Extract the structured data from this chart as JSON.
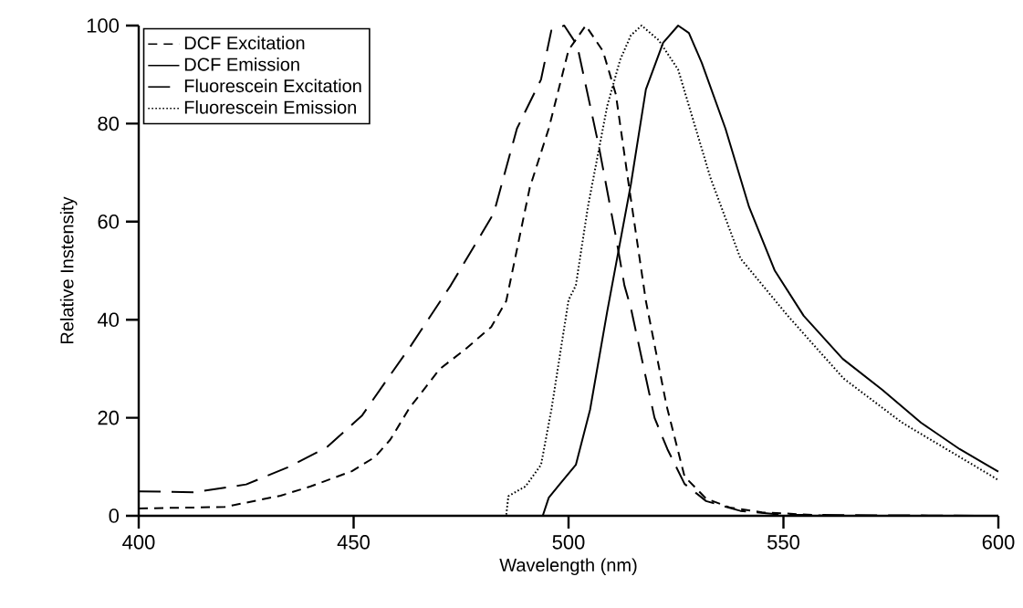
{
  "chart_data": {
    "type": "line",
    "xlabel": "Wavelength (nm)",
    "ylabel": "Relative Instensity",
    "xlim": [
      400,
      600
    ],
    "ylim": [
      0,
      100
    ],
    "xticks": [
      400,
      450,
      500,
      550,
      600
    ],
    "yticks": [
      0,
      20,
      40,
      60,
      80,
      100
    ],
    "legend": "top left",
    "grid": false,
    "marker": "none",
    "series": [
      {
        "name": "DCF Excitation",
        "color": "#000000",
        "line_style": "dashed",
        "x": [
          400,
          420,
          433,
          440,
          449.6,
          455,
          458.5,
          463,
          470,
          476,
          482,
          485.5,
          491,
          495.4,
          500,
          504,
          508,
          511,
          514,
          518,
          522.8,
          527,
          532,
          537.5,
          545,
          550,
          560,
          600
        ],
        "values": [
          1.5,
          1.8,
          4.1,
          6,
          9.1,
          12,
          15.5,
          22,
          29.9,
          34,
          38.5,
          43.8,
          67,
          79,
          95,
          100,
          94.8,
          86,
          67.6,
          43.8,
          22.5,
          8,
          3.5,
          1.7,
          0.7,
          0.5,
          0,
          0
        ]
      },
      {
        "name": "DCF Emission",
        "color": "#000000",
        "line_style": "solid",
        "x": [
          400,
          494,
          495.4,
          498,
          501.7,
          505,
          509,
          514.5,
          518,
          522,
          525.5,
          528,
          531,
          536.5,
          542,
          548,
          554.7,
          563.8,
          573,
          582,
          591,
          600
        ],
        "values": [
          0,
          0,
          3.7,
          6.5,
          10.4,
          21.6,
          41.7,
          67.6,
          87,
          96.5,
          100,
          98.5,
          92.4,
          79,
          63,
          50,
          40.8,
          32,
          25.7,
          19,
          13.6,
          9
        ]
      },
      {
        "name": "Fluorescein Excitation",
        "color": "#000000",
        "line_style": "dashed",
        "x": [
          400,
          413,
          425,
          434.7,
          443.8,
          452,
          457.7,
          463.4,
          472.6,
          482.6,
          488,
          493.6,
          496,
          499,
          502,
          507,
          511,
          513,
          514.5,
          520,
          523,
          527,
          532,
          540,
          550,
          600
        ],
        "values": [
          5,
          4.8,
          6.4,
          9.9,
          14,
          20.5,
          27.7,
          34.8,
          47,
          61.7,
          79,
          89,
          99,
          100,
          96,
          75.6,
          57,
          47,
          42.4,
          20,
          13.6,
          6.5,
          3,
          1,
          0.2,
          0
        ]
      },
      {
        "name": "Fluorescein Emission",
        "color": "#000000",
        "line_style": "dotted",
        "x": [
          400,
          485.5,
          486,
          490,
          493.6,
          496,
          500,
          501.7,
          504.5,
          509,
          512,
          514.5,
          517,
          521,
          525.5,
          533,
          540,
          551,
          564,
          577.6,
          591,
          600
        ],
        "values": [
          0,
          0,
          4,
          6,
          10.4,
          21.6,
          44,
          47,
          63,
          83.6,
          93,
          98,
          100,
          97,
          91,
          69,
          52.5,
          40.8,
          28,
          19,
          12,
          7.3
        ]
      }
    ]
  }
}
